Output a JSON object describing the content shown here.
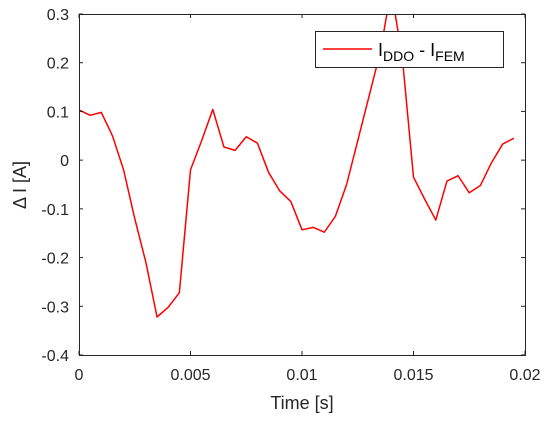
{
  "chart_data": {
    "type": "line",
    "xlabel": "Time [s]",
    "ylabel": "Δ I [A]",
    "xlim": [
      0,
      0.02
    ],
    "ylim": [
      -0.4,
      0.3
    ],
    "xticks": [
      0,
      0.005,
      0.01,
      0.015,
      0.02
    ],
    "xtick_labels": [
      "0",
      "0.005",
      "0.01",
      "0.015",
      "0.02"
    ],
    "yticks": [
      -0.4,
      -0.3,
      -0.2,
      -0.1,
      0,
      0.1,
      0.2,
      0.3
    ],
    "ytick_labels": [
      "-0.4",
      "-0.3",
      "-0.2",
      "-0.1",
      "0",
      "0.1",
      "0.2",
      "0.3"
    ],
    "grid": false,
    "box": true,
    "legend_position": "top-right",
    "series": [
      {
        "name": "I_DDO - I_FEM",
        "legend": {
          "main1": "I",
          "sub1": "DDO",
          "sep": " - ",
          "main2": "I",
          "sub2": "FEM"
        },
        "color": "#ff0000",
        "x": [
          0,
          0.0005,
          0.001,
          0.0015,
          0.002,
          0.0025,
          0.003,
          0.0035,
          0.004,
          0.0045,
          0.005,
          0.0055,
          0.006,
          0.0065,
          0.007,
          0.0075,
          0.008,
          0.0085,
          0.009,
          0.0095,
          0.01,
          0.0105,
          0.011,
          0.0115,
          0.012,
          0.0125,
          0.013,
          0.0135,
          0.014,
          0.0145,
          0.015,
          0.0155,
          0.016,
          0.0165,
          0.017,
          0.0175,
          0.018,
          0.0185,
          0.019,
          0.0195
        ],
        "y": [
          0.103,
          0.092,
          0.098,
          0.05,
          -0.02,
          -0.12,
          -0.21,
          -0.322,
          -0.302,
          -0.272,
          -0.02,
          0.04,
          0.104,
          0.027,
          0.02,
          0.048,
          0.035,
          -0.025,
          -0.063,
          -0.085,
          -0.143,
          -0.138,
          -0.148,
          -0.115,
          -0.05,
          0.04,
          0.13,
          0.22,
          0.35,
          0.21,
          -0.035,
          -0.08,
          -0.123,
          -0.043,
          -0.032,
          -0.067,
          -0.052,
          -0.005,
          0.033,
          0.045
        ]
      }
    ]
  }
}
